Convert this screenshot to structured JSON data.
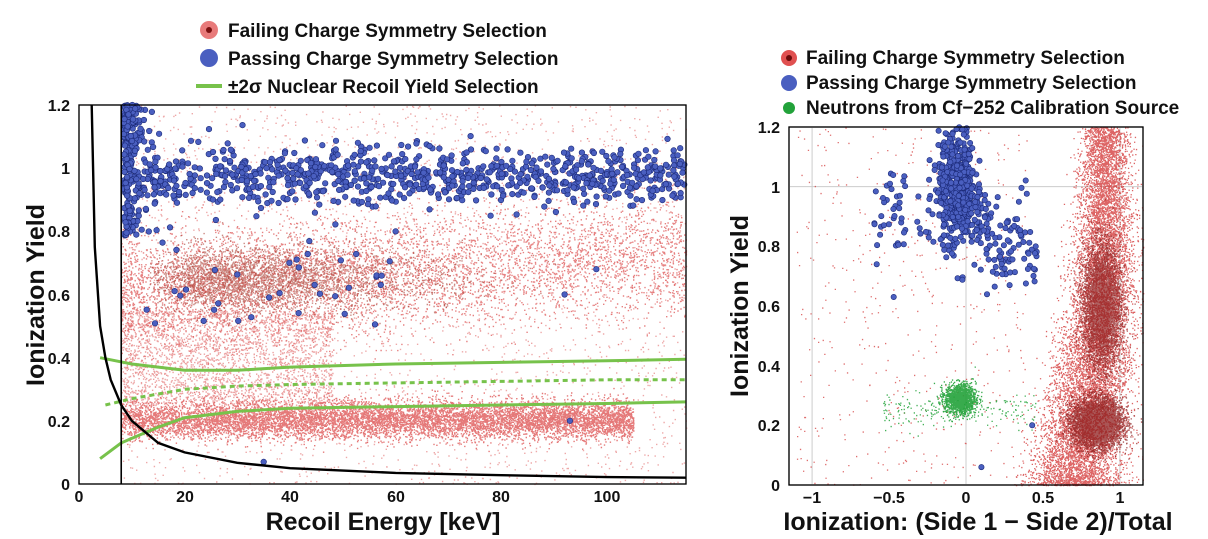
{
  "chart_data": [
    {
      "type": "scatter",
      "xlabel": "Recoil Energy [keV]",
      "ylabel": "Ionization Yield",
      "xlim": [
        0,
        115
      ],
      "ylim": [
        0,
        1.2
      ],
      "xticks": [
        "0",
        "20",
        "40",
        "60",
        "80",
        "100"
      ],
      "yticks": [
        "0",
        "0.2",
        "0.4",
        "0.6",
        "0.8",
        "1",
        "1.2"
      ],
      "legend": [
        {
          "label": "Failing Charge Symmetry Selection",
          "color": "#e06262",
          "marker": "dot"
        },
        {
          "label": "Passing Charge Symmetry Selection",
          "color": "#4a5fc0",
          "marker": "circle"
        },
        {
          "label": "±2σ Nuclear Recoil Yield Selection",
          "color": "#77c24b",
          "marker": "line"
        }
      ],
      "legend_position": "top",
      "colors": {
        "failing": "#e06262",
        "failing_dense": "#a83a2e",
        "passing": "#4a5fc0",
        "selection": "#77c24b",
        "threshold": "#000000"
      },
      "series": [
        {
          "name": "Failing Charge Symmetry Selection",
          "clusters": [
            {
              "desc": "electron recoil band",
              "x_range": [
                8,
                115
              ],
              "y_center": 0.66,
              "y_spread": 0.1
            },
            {
              "desc": "nuclear recoil band",
              "x_range": [
                8,
                105
              ],
              "y_center": 0.2,
              "y_spread": 0.04
            }
          ]
        },
        {
          "name": "Passing Charge Symmetry Selection",
          "clusters": [
            {
              "desc": "surface/low-energy column",
              "x_range": [
                8,
                12
              ],
              "y_center": 0.95,
              "y_spread": 0.15
            },
            {
              "desc": "upper band",
              "x_range": [
                12,
                115
              ],
              "y_center": 0.97,
              "y_spread": 0.05
            }
          ]
        },
        {
          "name": "±2σ Nuclear Recoil Yield Selection",
          "lines": [
            {
              "x": [
                4,
                10,
                20,
                30,
                40,
                60,
                80,
                100,
                115
              ],
              "y": [
                0.4,
                0.38,
                0.36,
                0.36,
                0.37,
                0.38,
                0.385,
                0.39,
                0.395
              ]
            },
            {
              "x": [
                5,
                10,
                20,
                30,
                40,
                60,
                80,
                100,
                115
              ],
              "y": [
                0.25,
                0.27,
                0.3,
                0.31,
                0.315,
                0.32,
                0.325,
                0.33,
                0.33
              ],
              "style": "dashed"
            },
            {
              "x": [
                4,
                8,
                15,
                20,
                30,
                40,
                60,
                80,
                100,
                115
              ],
              "y": [
                0.08,
                0.13,
                0.18,
                0.21,
                0.23,
                0.24,
                0.245,
                0.25,
                0.255,
                0.26
              ]
            }
          ]
        },
        {
          "name": "threshold",
          "lines": [
            {
              "x": [
                2.4,
                3,
                4,
                5,
                6,
                8,
                10,
                15,
                20,
                30,
                40,
                60,
                80,
                100,
                115
              ],
              "y": [
                1.2,
                0.75,
                0.5,
                0.4,
                0.33,
                0.25,
                0.2,
                0.13,
                0.1,
                0.067,
                0.05,
                0.035,
                0.028,
                0.022,
                0.02
              ]
            },
            {
              "x": [
                8,
                8
              ],
              "y": [
                0,
                1.2
              ]
            }
          ]
        }
      ]
    },
    {
      "type": "scatter",
      "xlabel": "Ionization:  (Side 1 − Side 2)/Total",
      "ylabel": "Ionization Yield",
      "xlim": [
        -1.15,
        1.15
      ],
      "ylim": [
        0,
        1.2
      ],
      "xticks": [
        "−1",
        "−0.5",
        "0",
        "0.5",
        "1"
      ],
      "yticks": [
        "0",
        "0.2",
        "0.4",
        "0.6",
        "0.8",
        "1",
        "1.2"
      ],
      "legend": [
        {
          "label": "Failing Charge Symmetry Selection",
          "color": "#d23030",
          "marker": "dot"
        },
        {
          "label": "Passing Charge Symmetry Selection",
          "color": "#4a5fc0",
          "marker": "circle"
        },
        {
          "label": "Neutrons from Cf−252 Calibration Source",
          "color": "#22a23a",
          "marker": "dot"
        }
      ],
      "legend_position": "top",
      "colors": {
        "failing": "#d23030",
        "failing_dense": "#8e1c1c",
        "passing": "#4a5fc0",
        "neutrons": "#22a23a"
      },
      "series": [
        {
          "name": "Failing Charge Symmetry Selection",
          "clusters": [
            {
              "desc": "right plume",
              "x_range": [
                0.3,
                1.15
              ],
              "y_center": 0.5,
              "y_spread": 0.3
            }
          ]
        },
        {
          "name": "Passing Charge Symmetry Selection",
          "clusters": [
            {
              "desc": "central column",
              "x_center": -0.05,
              "y_center": 1.0,
              "y_spread": 0.12
            }
          ]
        },
        {
          "name": "Neutrons from Cf−252 Calibration Source",
          "clusters": [
            {
              "desc": "neutron blob",
              "x_center": -0.05,
              "y_center": 0.29,
              "y_spread": 0.03
            }
          ]
        }
      ]
    }
  ]
}
